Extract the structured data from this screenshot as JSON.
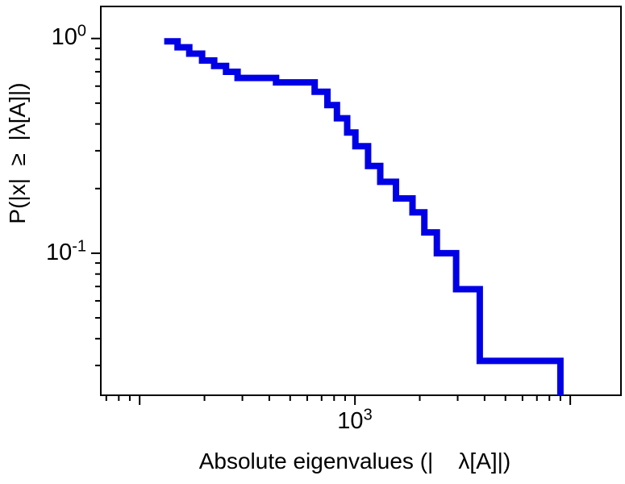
{
  "chart_data": {
    "type": "line",
    "subtype": "log-log step CCDF",
    "title": "",
    "xlabel": "Absolute eigenvalues (|    λ[A]|)",
    "ylabel": "P(|x|  ≥  |λ[A]|)",
    "xlim": [
      66,
      17200
    ],
    "ylim": [
      0.0218,
      1.41
    ],
    "x_major_ticks": [
      {
        "value": 1000,
        "label_base": "10",
        "label_exp": "3"
      }
    ],
    "y_major_ticks": [
      {
        "value": 1,
        "label_base": "10",
        "label_exp": "0"
      },
      {
        "value": 0.1,
        "label_base": "10",
        "label_exp": "-1"
      }
    ],
    "grid": false,
    "legend": "none",
    "line_color": "#0000e6",
    "line_width": 8,
    "frame_color": "#000000",
    "step_points": [
      [
        130,
        0.97
      ],
      [
        150,
        0.91
      ],
      [
        170,
        0.85
      ],
      [
        195,
        0.79
      ],
      [
        222,
        0.745
      ],
      [
        252,
        0.7
      ],
      [
        285,
        0.655
      ],
      [
        430,
        0.625
      ],
      [
        650,
        0.565
      ],
      [
        745,
        0.49
      ],
      [
        825,
        0.425
      ],
      [
        920,
        0.365
      ],
      [
        1005,
        0.315
      ],
      [
        1150,
        0.255
      ],
      [
        1310,
        0.215
      ],
      [
        1550,
        0.18
      ],
      [
        1850,
        0.155
      ],
      [
        2100,
        0.125
      ],
      [
        2400,
        0.1
      ],
      [
        2950,
        0.068
      ],
      [
        3800,
        0.0315
      ],
      [
        9000,
        0.0218
      ]
    ]
  }
}
